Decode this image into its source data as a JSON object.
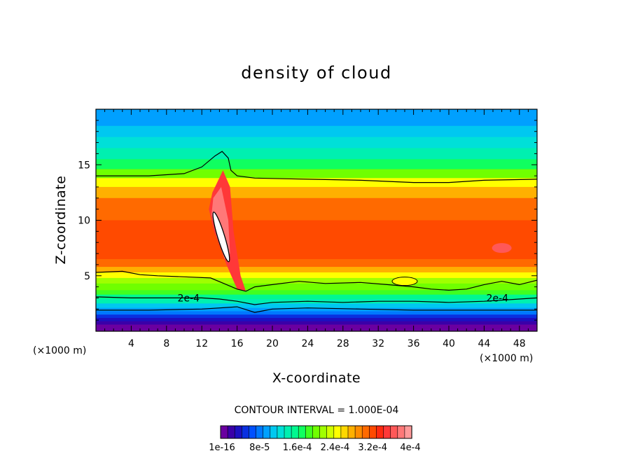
{
  "chart_data": {
    "type": "heatmap",
    "title": "density of cloud",
    "xlabel": "X-coordinate",
    "ylabel": "Z-coordinate",
    "x_unit_label": "(×1000 m)",
    "x_unit_label_right": "(×1000 m)",
    "xlim": [
      0,
      50
    ],
    "ylim": [
      0,
      20
    ],
    "x_ticks": [
      4,
      8,
      12,
      16,
      20,
      24,
      28,
      32,
      36,
      40,
      44,
      48
    ],
    "x_tick_labels": [
      "4",
      "8",
      "12",
      "16",
      "20",
      "24",
      "28",
      "32",
      "36",
      "40",
      "44",
      "48"
    ],
    "y_ticks": [
      5,
      10,
      15
    ],
    "y_tick_labels": [
      "5",
      "10",
      "15"
    ],
    "contour_interval_text": "CONTOUR INTERVAL = 1.000E-04",
    "contour_labels": [
      {
        "text": "2e-4",
        "x": 10.5,
        "z": 3.0
      },
      {
        "text": "2e-4",
        "x": 45.5,
        "z": 3.0
      }
    ],
    "colorbar": {
      "tick_labels": [
        "1e-16",
        "8e-5",
        "1.6e-4",
        "2.4e-4",
        "3.2e-4",
        "4e-4"
      ],
      "min": 0,
      "max": 0.0004,
      "colors": [
        "#6a00a0",
        "#3a00a8",
        "#1c10c0",
        "#0a30e0",
        "#0050ff",
        "#0078ff",
        "#00a0ff",
        "#00c8f0",
        "#00e0d8",
        "#00f0b0",
        "#00f890",
        "#10ff60",
        "#40ff20",
        "#70ff00",
        "#a0ff00",
        "#d0ff00",
        "#ffff00",
        "#ffd800",
        "#ffb000",
        "#ff8c00",
        "#ff6a00",
        "#ff4a00",
        "#ff2a10",
        "#ff3838",
        "#ff5858",
        "#ff7878",
        "#ff9a9a"
      ]
    },
    "bands": [
      {
        "z_top": 20.0,
        "value": 0.0001
      },
      {
        "z_top": 18.5,
        "value": 0.00011
      },
      {
        "z_top": 17.5,
        "value": 0.000125
      },
      {
        "z_top": 16.5,
        "value": 0.000145
      },
      {
        "z_top": 15.5,
        "value": 0.00017
      },
      {
        "z_top": 14.6,
        "value": 0.000195
      },
      {
        "z_top": 13.8,
        "value": 0.00024
      },
      {
        "z_top": 13.0,
        "value": 0.00027
      },
      {
        "z_top": 12.0,
        "value": 0.0003
      },
      {
        "z_top": 10.0,
        "value": 0.00032
      },
      {
        "z_top": 6.5,
        "value": 0.0003
      },
      {
        "z_top": 5.8,
        "value": 0.000275
      },
      {
        "z_top": 5.3,
        "value": 0.000245
      },
      {
        "z_top": 4.8,
        "value": 0.00022
      },
      {
        "z_top": 4.3,
        "value": 0.0002
      },
      {
        "z_top": 3.7,
        "value": 0.00018
      },
      {
        "z_top": 3.3,
        "value": 0.00016
      },
      {
        "z_top": 2.9,
        "value": 0.00014
      },
      {
        "z_top": 2.5,
        "value": 0.000115
      },
      {
        "z_top": 2.1,
        "value": 9.5e-05
      },
      {
        "z_top": 1.8,
        "value": 7.5e-05
      },
      {
        "z_top": 1.5,
        "value": 5.5e-05
      },
      {
        "z_top": 1.2,
        "value": 3.5e-05
      },
      {
        "z_top": 0.9,
        "value": 1.5e-05
      }
    ],
    "contours": [
      {
        "level": 0.0002,
        "points": [
          [
            0,
            14
          ],
          [
            6,
            14
          ],
          [
            10,
            14.2
          ],
          [
            12,
            14.8
          ],
          [
            13.5,
            15.8
          ],
          [
            14.3,
            16.2
          ],
          [
            15,
            15.6
          ],
          [
            15.3,
            14.5
          ],
          [
            16,
            14.0
          ],
          [
            18,
            13.8
          ],
          [
            24,
            13.7
          ],
          [
            30,
            13.6
          ],
          [
            36,
            13.4
          ],
          [
            40,
            13.4
          ],
          [
            44,
            13.6
          ],
          [
            50,
            13.7
          ]
        ]
      },
      {
        "level": 0.0002,
        "points": [
          [
            0,
            5.3
          ],
          [
            3,
            5.4
          ],
          [
            5,
            5.1
          ],
          [
            7,
            5.0
          ],
          [
            10,
            4.9
          ],
          [
            13,
            4.8
          ],
          [
            14.5,
            4.3
          ],
          [
            16,
            3.8
          ],
          [
            17,
            3.6
          ],
          [
            18,
            4.0
          ],
          [
            20,
            4.2
          ],
          [
            23,
            4.5
          ],
          [
            26,
            4.3
          ],
          [
            30,
            4.4
          ],
          [
            33,
            4.2
          ],
          [
            36,
            4.0
          ],
          [
            38,
            3.8
          ],
          [
            40,
            3.7
          ],
          [
            42,
            3.8
          ],
          [
            44,
            4.2
          ],
          [
            46,
            4.5
          ],
          [
            48,
            4.2
          ],
          [
            50,
            4.6
          ]
        ]
      },
      {
        "level": 0.0002,
        "points": [
          [
            0,
            3.1
          ],
          [
            4,
            3.0
          ],
          [
            8,
            3.0
          ],
          [
            12,
            3.0
          ],
          [
            14,
            2.9
          ],
          [
            16,
            2.7
          ],
          [
            18,
            2.4
          ],
          [
            20,
            2.6
          ],
          [
            24,
            2.7
          ],
          [
            28,
            2.6
          ],
          [
            32,
            2.7
          ],
          [
            36,
            2.7
          ],
          [
            40,
            2.6
          ],
          [
            44,
            2.7
          ],
          [
            48,
            2.9
          ],
          [
            50,
            3.0
          ]
        ]
      },
      {
        "level": 0.0001,
        "points": [
          [
            0,
            1.9
          ],
          [
            6,
            1.9
          ],
          [
            12,
            2.0
          ],
          [
            16,
            2.2
          ],
          [
            18,
            1.7
          ],
          [
            20,
            2.0
          ],
          [
            24,
            2.1
          ],
          [
            30,
            2.0
          ],
          [
            36,
            1.9
          ],
          [
            42,
            1.9
          ],
          [
            50,
            1.9
          ]
        ]
      }
    ]
  }
}
